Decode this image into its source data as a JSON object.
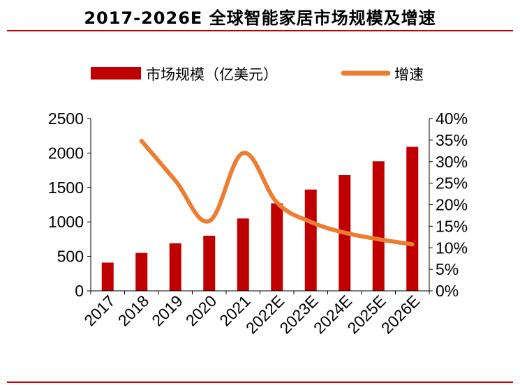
{
  "title": "2017-2026E 全球智能家居市场规模及增速",
  "chart_data": {
    "type": "bar",
    "categories": [
      "2017",
      "2018",
      "2019",
      "2020",
      "2021",
      "2022E",
      "2023E",
      "2024E",
      "2025E",
      "2026E"
    ],
    "series": [
      {
        "name": "市场规模（亿美元）",
        "type": "bar",
        "axis": "left",
        "color": "#c00000",
        "values": [
          410,
          550,
          690,
          800,
          1050,
          1270,
          1470,
          1680,
          1880,
          2090
        ]
      },
      {
        "name": "增速",
        "type": "line",
        "axis": "right",
        "color": "#ed7d31",
        "values": [
          null,
          34.8,
          25.6,
          16.2,
          32.0,
          20.5,
          16.0,
          13.5,
          12.0,
          10.8
        ]
      }
    ],
    "y_left": {
      "min": 0,
      "max": 2500,
      "ticks": [
        "0",
        "500",
        "1000",
        "1500",
        "2000",
        "2500"
      ]
    },
    "y_right": {
      "min": 0,
      "max": 40,
      "ticks": [
        "0%",
        "5%",
        "10%",
        "15%",
        "20%",
        "25%",
        "30%",
        "35%",
        "40%"
      ]
    },
    "legend_position": "top",
    "grid": false
  }
}
